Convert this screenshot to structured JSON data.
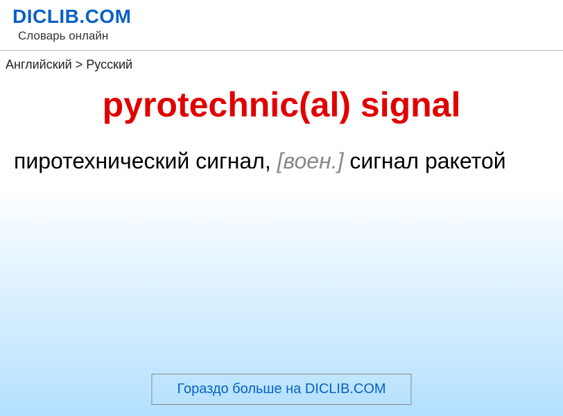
{
  "header": {
    "logo": "DICLIB.COM",
    "subtitle": "Словарь онлайн"
  },
  "breadcrumb": {
    "from": "Английский",
    "separator": ">",
    "to": "Русский"
  },
  "entry": {
    "term": "pyrotechnic(al) signal",
    "definition_part1": "пиротехнический сигнал, ",
    "definition_mark": "[воен.]",
    "definition_part2": " сигнал ракетой"
  },
  "cta": {
    "label": "Гораздо больше на DICLIB.COM"
  },
  "colors": {
    "logo_color": "#0860c4",
    "term_color": "#e00000",
    "mark_color": "#888888",
    "cta_color": "#0860c4",
    "gradient_top": "#ffffff",
    "gradient_bottom": "#b3e0ff"
  },
  "typography": {
    "logo_fontsize": 28,
    "subtitle_fontsize": 17,
    "breadcrumb_fontsize": 18,
    "term_fontsize": 50,
    "definition_fontsize": 32,
    "cta_fontsize": 20
  }
}
